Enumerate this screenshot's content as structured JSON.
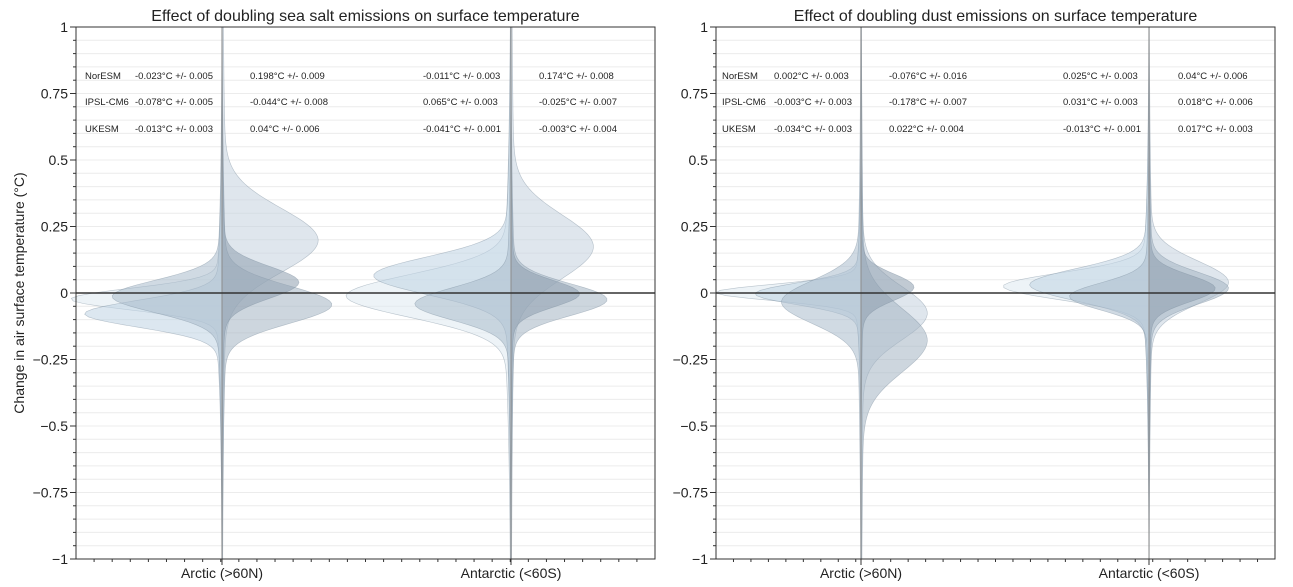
{
  "figure": {
    "ylabel": "Change in air surface temperature (°C)"
  },
  "chart_data": [
    {
      "type": "violin",
      "title": "Effect of doubling sea salt emissions on surface temperature",
      "ylabel": "Change in air surface temperature (°C)",
      "ylim": [
        -1,
        1
      ],
      "yticks": [
        1,
        0.75,
        0.5,
        0.25,
        0,
        -0.25,
        -0.5,
        -0.75,
        -1
      ],
      "ytick_labels": [
        "1",
        "0.75",
        "0.5",
        "0.25",
        "0",
        "−0.25",
        "−0.5",
        "−0.75",
        "−1"
      ],
      "categories": [
        "Arctic (>60N)",
        "Antarctic (<60S)"
      ],
      "grid": true,
      "models": [
        "NorESM",
        "IPSL-CM6",
        "UKESM"
      ],
      "annotations": [
        [
          "-0.023°C +/- 0.005",
          "0.198°C +/- 0.009",
          "-0.011°C +/- 0.003",
          "0.174°C +/- 0.008"
        ],
        [
          "-0.078°C +/- 0.005",
          "-0.044°C +/- 0.008",
          "0.065°C +/- 0.003",
          "-0.025°C +/- 0.007"
        ],
        [
          "-0.013°C +/- 0.003",
          "0.04°C +/- 0.006",
          "-0.041°C +/- 0.001",
          "-0.003°C +/- 0.004"
        ]
      ],
      "violins": [
        {
          "category": "Arctic (>60N)",
          "side": "left",
          "mean": -0.023,
          "sd": 0.04,
          "width": 0.55,
          "color": "#dfe9f1"
        },
        {
          "category": "Arctic (>60N)",
          "side": "left",
          "mean": -0.078,
          "sd": 0.05,
          "width": 0.5,
          "color": "#bfd3e3"
        },
        {
          "category": "Arctic (>60N)",
          "side": "left",
          "mean": -0.013,
          "sd": 0.06,
          "width": 0.4,
          "color": "#a9bccc"
        },
        {
          "category": "Arctic (>60N)",
          "side": "right",
          "mean": 0.198,
          "sd": 0.12,
          "width": 0.35,
          "color": "#c5d2de"
        },
        {
          "category": "Arctic (>60N)",
          "side": "right",
          "mean": -0.044,
          "sd": 0.07,
          "width": 0.4,
          "color": "#a4b4c3"
        },
        {
          "category": "Arctic (>60N)",
          "side": "right",
          "mean": 0.04,
          "sd": 0.06,
          "width": 0.28,
          "color": "#8e9fae"
        },
        {
          "category": "Antarctic (<60S)",
          "side": "left",
          "mean": -0.011,
          "sd": 0.08,
          "width": 0.6,
          "color": "#dfe9f1"
        },
        {
          "category": "Antarctic (<60S)",
          "side": "left",
          "mean": 0.065,
          "sd": 0.07,
          "width": 0.5,
          "color": "#bfd3e3"
        },
        {
          "category": "Antarctic (<60S)",
          "side": "left",
          "mean": -0.041,
          "sd": 0.06,
          "width": 0.35,
          "color": "#a9bccc"
        },
        {
          "category": "Antarctic (<60S)",
          "side": "right",
          "mean": 0.174,
          "sd": 0.12,
          "width": 0.3,
          "color": "#c5d2de"
        },
        {
          "category": "Antarctic (<60S)",
          "side": "right",
          "mean": -0.025,
          "sd": 0.06,
          "width": 0.35,
          "color": "#a4b4c3"
        },
        {
          "category": "Antarctic (<60S)",
          "side": "right",
          "mean": -0.003,
          "sd": 0.05,
          "width": 0.25,
          "color": "#8e9fae"
        }
      ]
    },
    {
      "type": "violin",
      "title": "Effect of doubling dust emissions on surface temperature",
      "ylim": [
        -1,
        1
      ],
      "yticks": [
        1,
        0.75,
        0.5,
        0.25,
        0,
        -0.25,
        -0.5,
        -0.75,
        -1
      ],
      "ytick_labels": [
        "1",
        "0.75",
        "0.5",
        "0.25",
        "0",
        "−0.25",
        "−0.5",
        "−0.75",
        "−1"
      ],
      "categories": [
        "Arctic (>60N)",
        "Antarctic (<60S)"
      ],
      "grid": true,
      "models": [
        "NorESM",
        "IPSL-CM6",
        "UKESM"
      ],
      "annotations": [
        [
          "0.002°C +/- 0.003",
          "-0.076°C +/- 0.016",
          "0.025°C +/- 0.003",
          "0.04°C +/- 0.006"
        ],
        [
          "-0.003°C +/- 0.003",
          "-0.178°C +/- 0.007",
          "0.031°C +/- 0.003",
          "0.018°C +/- 0.006"
        ],
        [
          "-0.034°C +/- 0.003",
          "0.022°C +/- 0.004",
          "-0.013°C +/- 0.001",
          "0.017°C +/- 0.003"
        ]
      ],
      "violins": [
        {
          "category": "Arctic (>60N)",
          "side": "left",
          "mean": 0.002,
          "sd": 0.03,
          "width": 0.55,
          "color": "#dfe9f1"
        },
        {
          "category": "Arctic (>60N)",
          "side": "left",
          "mean": -0.003,
          "sd": 0.04,
          "width": 0.4,
          "color": "#bfd3e3"
        },
        {
          "category": "Arctic (>60N)",
          "side": "left",
          "mean": -0.034,
          "sd": 0.08,
          "width": 0.3,
          "color": "#a9bccc"
        },
        {
          "category": "Arctic (>60N)",
          "side": "right",
          "mean": -0.076,
          "sd": 0.1,
          "width": 0.25,
          "color": "#c5d2de"
        },
        {
          "category": "Arctic (>60N)",
          "side": "right",
          "mean": -0.178,
          "sd": 0.12,
          "width": 0.25,
          "color": "#a4b4c3"
        },
        {
          "category": "Arctic (>60N)",
          "side": "right",
          "mean": 0.022,
          "sd": 0.05,
          "width": 0.2,
          "color": "#8e9fae"
        },
        {
          "category": "Antarctic (<60S)",
          "side": "left",
          "mean": 0.025,
          "sd": 0.05,
          "width": 0.55,
          "color": "#dfe9f1"
        },
        {
          "category": "Antarctic (<60S)",
          "side": "left",
          "mean": 0.031,
          "sd": 0.06,
          "width": 0.45,
          "color": "#bfd3e3"
        },
        {
          "category": "Antarctic (<60S)",
          "side": "left",
          "mean": -0.013,
          "sd": 0.05,
          "width": 0.3,
          "color": "#a9bccc"
        },
        {
          "category": "Antarctic (<60S)",
          "side": "right",
          "mean": 0.04,
          "sd": 0.08,
          "width": 0.3,
          "color": "#c5d2de"
        },
        {
          "category": "Antarctic (<60S)",
          "side": "right",
          "mean": 0.018,
          "sd": 0.06,
          "width": 0.3,
          "color": "#a4b4c3"
        },
        {
          "category": "Antarctic (<60S)",
          "side": "right",
          "mean": 0.017,
          "sd": 0.05,
          "width": 0.25,
          "color": "#8e9fae"
        }
      ]
    }
  ],
  "colors": {
    "axis": "#333333",
    "grid": "#ececec",
    "zero_line": "#333333",
    "center_line": "#8c8c8c"
  }
}
